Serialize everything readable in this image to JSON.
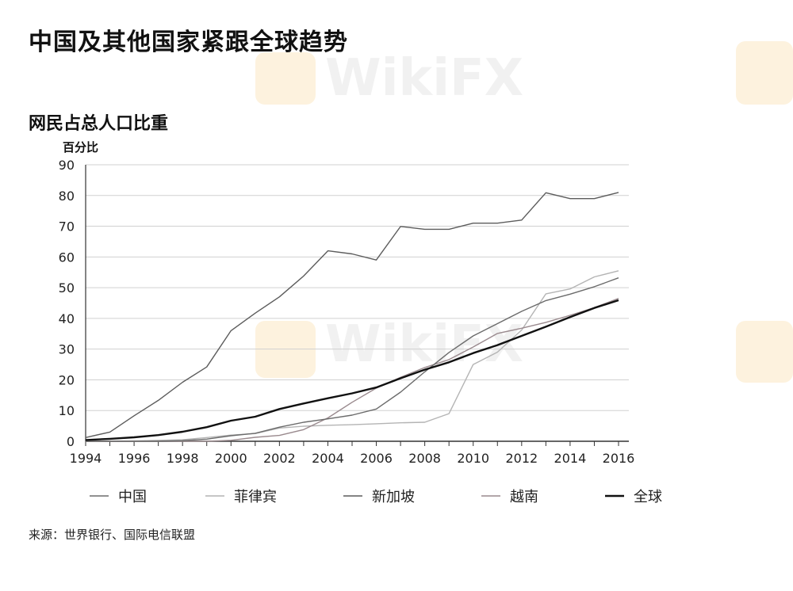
{
  "page": {
    "title": "中国及其他国家紧跟全球趋势",
    "watermark": "WikiFX"
  },
  "chart_data": {
    "type": "line",
    "title": "网民占总人口比重",
    "ylabel": "百分比",
    "xlabel": "",
    "ylim": [
      0,
      90
    ],
    "xlim": [
      1994,
      2016
    ],
    "grid": true,
    "legend_position": "bottom",
    "x_ticks": [
      "1994",
      "1996",
      "1998",
      "2000",
      "2002",
      "2004",
      "2006",
      "2008",
      "2010",
      "2012",
      "2014",
      "2016"
    ],
    "y_ticks": [
      "0",
      "10",
      "20",
      "30",
      "40",
      "50",
      "60",
      "70",
      "80",
      "90"
    ],
    "x": [
      1994,
      1995,
      1996,
      1997,
      1998,
      1999,
      2000,
      2001,
      2002,
      2003,
      2004,
      2005,
      2006,
      2007,
      2008,
      2009,
      2010,
      2011,
      2012,
      2013,
      2014,
      2015,
      2016
    ],
    "series": [
      {
        "name": "中国",
        "color": "#6b6b6b",
        "width": 1.4,
        "values": [
          0,
          0,
          0,
          0,
          0.2,
          0.7,
          1.8,
          2.6,
          4.6,
          6.2,
          7.3,
          8.5,
          10.5,
          16,
          22.6,
          28.9,
          34.3,
          38.3,
          42.3,
          45.8,
          47.9,
          50.3,
          53.2
        ]
      },
      {
        "name": "菲律宾",
        "color": "#b4b4b4",
        "width": 1.4,
        "values": [
          0,
          0,
          0.1,
          0.3,
          0.5,
          1.2,
          2,
          2.5,
          4.3,
          4.9,
          5.2,
          5.4,
          5.7,
          6,
          6.2,
          9,
          25,
          29,
          36.2,
          48,
          49.6,
          53.5,
          55.5
        ]
      },
      {
        "name": "新加坡",
        "color": "#5c5c5c",
        "width": 1.4,
        "values": [
          1.2,
          3,
          8.3,
          13.3,
          19.2,
          24.2,
          36,
          41.7,
          47,
          53.8,
          62,
          61,
          59,
          69.9,
          69,
          69,
          71,
          71,
          72,
          80.9,
          79,
          79,
          81
        ]
      },
      {
        "name": "越南",
        "color": "#9a8a8e",
        "width": 1.4,
        "values": [
          0,
          0,
          0,
          0,
          0,
          0,
          0.3,
          1.3,
          1.9,
          3.8,
          7.6,
          12.7,
          17.3,
          20.8,
          24,
          26.6,
          30.7,
          35.1,
          36.8,
          38.7,
          41,
          43.5,
          46.5
        ]
      },
      {
        "name": "全球",
        "color": "#111111",
        "width": 2.4,
        "values": [
          0.4,
          0.8,
          1.3,
          2,
          3.1,
          4.6,
          6.7,
          8,
          10.5,
          12.3,
          14,
          15.6,
          17.5,
          20.5,
          23.3,
          25.7,
          28.7,
          31.3,
          34.3,
          37.3,
          40.4,
          43.4,
          45.9
        ]
      }
    ]
  },
  "source_text": "来源：世界银行、国际电信联盟"
}
